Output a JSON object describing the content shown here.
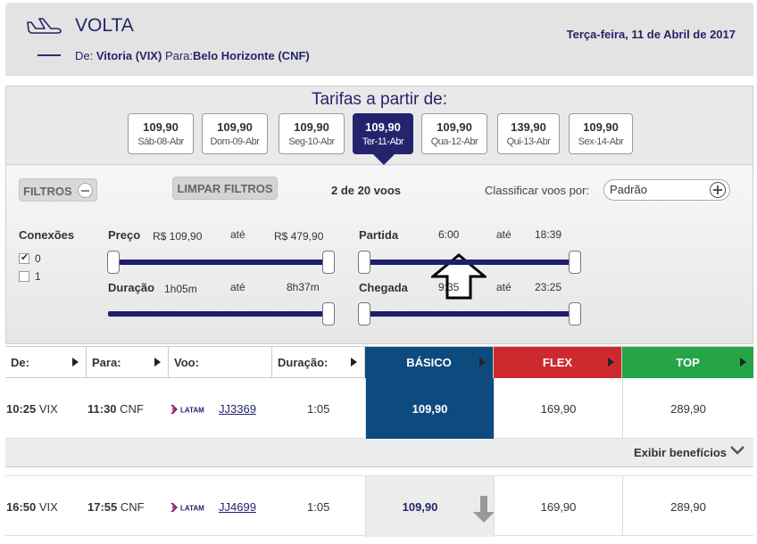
{
  "header": {
    "title": "VOLTA",
    "from_label": "De:",
    "from_value": "Vitoria (VIX)",
    "to_label": "Para:",
    "to_value": "Belo Horizonte (CNF)",
    "date": "Terça-feira, 11 de Abril de 2017",
    "icon": "plane-landing-icon"
  },
  "fares": {
    "title": "Tarifas a partir de:",
    "days": [
      {
        "price": "109,90",
        "date": "Sáb-08-Abr"
      },
      {
        "price": "109,90",
        "date": "Dom-09-Abr"
      },
      {
        "price": "109,90",
        "date": "Seg-10-Abr"
      },
      {
        "price": "109,90",
        "date": "Ter-11-Abr",
        "active": true
      },
      {
        "price": "109,90",
        "date": "Qua-12-Abr"
      },
      {
        "price": "139,90",
        "date": "Qui-13-Abr"
      },
      {
        "price": "109,90",
        "date": "Sex-14-Abr"
      }
    ]
  },
  "filters": {
    "toggle_label": "FILTROS",
    "clear_label": "LIMPAR FILTROS",
    "count": "2 de 20 voos",
    "sort_label": "Classificar voos por:",
    "sort_value": "Padrão",
    "connections": {
      "label": "Conexões",
      "options": [
        {
          "label": "0",
          "checked": true
        },
        {
          "label": "1",
          "checked": false
        }
      ]
    },
    "price": {
      "label": "Preço",
      "min": "R$ 109,90",
      "sep": "até",
      "max": "R$ 479,90"
    },
    "duration": {
      "label": "Duração",
      "min": "1h05m",
      "sep": "até",
      "max": "8h37m"
    },
    "departure": {
      "label": "Partida",
      "min": "6:00",
      "sep": "até",
      "max": "18:39"
    },
    "arrival": {
      "label": "Chegada",
      "min": "9:35",
      "sep": "até",
      "max": "23:25"
    }
  },
  "table": {
    "headers": {
      "from": "De:",
      "to": "Para:",
      "flight": "Voo:",
      "duration": "Duração:",
      "basico": "BÁSICO",
      "flex": "FLEX",
      "top": "TOP"
    },
    "rows": [
      {
        "dep_time": "10:25",
        "dep_code": "VIX",
        "arr_time": "11:30",
        "arr_code": "CNF",
        "airline": "LATAM",
        "flight": "JJ3369",
        "duration": "1:05",
        "basico": "109,90",
        "flex": "169,90",
        "top": "289,90"
      },
      {
        "dep_time": "16:50",
        "dep_code": "VIX",
        "arr_time": "17:55",
        "arr_code": "CNF",
        "airline": "LATAM",
        "flight": "JJ4699",
        "duration": "1:05",
        "basico": "109,90",
        "flex": "169,90",
        "top": "289,90"
      }
    ],
    "benefits_label": "Exibir benefícios"
  },
  "colors": {
    "navy": "#24246e",
    "basico": "#0d4a7e",
    "flex": "#cc2a2e",
    "top": "#26a547"
  }
}
